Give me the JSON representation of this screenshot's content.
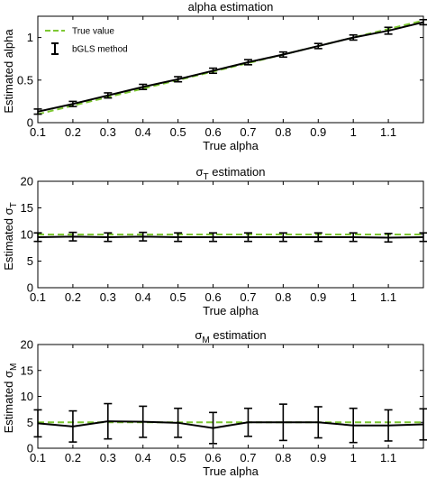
{
  "chart_data": [
    {
      "type": "line",
      "title": "alpha estimation",
      "title_main": "alpha estimation",
      "title_sub": "",
      "xlabel": "True alpha",
      "ylabel": "Estimated alpha",
      "ylabel_main": "Estimated alpha",
      "ylabel_sub": "",
      "xlim": [
        0.1,
        1.2
      ],
      "ylim": [
        0,
        1.25
      ],
      "xticks": [
        0.1,
        0.2,
        0.3,
        0.4,
        0.5,
        0.6,
        0.7,
        0.8,
        0.9,
        1,
        1.1
      ],
      "xtick_labels": [
        "0.1",
        "0.2",
        "0.3",
        "0.4",
        "0.5",
        "0.6",
        "0.7",
        "0.8",
        "0.9",
        "1",
        "1.1"
      ],
      "yticks": [
        0,
        0.5,
        1
      ],
      "ytick_labels": [
        "0",
        "0.5",
        "1"
      ],
      "grid": false,
      "legend": {
        "placement": "top-left",
        "entries": [
          "True value",
          "bGLS method"
        ]
      },
      "x": [
        0.1,
        0.2,
        0.3,
        0.4,
        0.5,
        0.6,
        0.7,
        0.8,
        0.9,
        1.0,
        1.1,
        1.2
      ],
      "series": [
        {
          "name": "True value",
          "style": "dashed",
          "color": "#7dc832",
          "values": [
            0.1,
            0.2,
            0.3,
            0.4,
            0.5,
            0.6,
            0.7,
            0.8,
            0.9,
            1.0,
            1.1,
            1.2
          ]
        },
        {
          "name": "bGLS method",
          "style": "solid",
          "color": "#000000",
          "values": [
            0.13,
            0.22,
            0.32,
            0.42,
            0.51,
            0.61,
            0.71,
            0.8,
            0.9,
            1.0,
            1.08,
            1.18
          ],
          "errors": [
            0.03,
            0.03,
            0.03,
            0.03,
            0.03,
            0.03,
            0.03,
            0.03,
            0.03,
            0.03,
            0.04,
            0.03
          ]
        }
      ]
    },
    {
      "type": "line",
      "title": "σT estimation",
      "title_main": "σ",
      "title_sub": "T",
      "title_suffix": " estimation",
      "xlabel": "True alpha",
      "ylabel": "Estimated σT",
      "ylabel_main": "Estimated σ",
      "ylabel_sub": "T",
      "xlim": [
        0.1,
        1.2
      ],
      "ylim": [
        0,
        20
      ],
      "xticks": [
        0.1,
        0.2,
        0.3,
        0.4,
        0.5,
        0.6,
        0.7,
        0.8,
        0.9,
        1,
        1.1
      ],
      "xtick_labels": [
        "0.1",
        "0.2",
        "0.3",
        "0.4",
        "0.5",
        "0.6",
        "0.7",
        "0.8",
        "0.9",
        "1",
        "1.1"
      ],
      "yticks": [
        0,
        5,
        10,
        15,
        20
      ],
      "ytick_labels": [
        "0",
        "5",
        "10",
        "15",
        "20"
      ],
      "grid": false,
      "x": [
        0.1,
        0.2,
        0.3,
        0.4,
        0.5,
        0.6,
        0.7,
        0.8,
        0.9,
        1.0,
        1.1,
        1.2
      ],
      "series": [
        {
          "name": "True value",
          "style": "dashed",
          "color": "#7dc832",
          "values": [
            10,
            10,
            10,
            10,
            10,
            10,
            10,
            10,
            10,
            10,
            10,
            10
          ]
        },
        {
          "name": "bGLS method",
          "style": "solid",
          "color": "#000000",
          "values": [
            9.5,
            9.6,
            9.5,
            9.6,
            9.5,
            9.5,
            9.5,
            9.5,
            9.5,
            9.5,
            9.4,
            9.5
          ],
          "errors": [
            0.8,
            0.8,
            0.8,
            0.8,
            0.8,
            0.8,
            0.8,
            0.8,
            0.8,
            0.8,
            0.8,
            0.8
          ]
        }
      ]
    },
    {
      "type": "line",
      "title": "σM estimation",
      "title_main": "σ",
      "title_sub": "M",
      "title_suffix": " estimation",
      "xlabel": "True alpha",
      "ylabel": "Estimated σM",
      "ylabel_main": "Estimated σ",
      "ylabel_sub": "M",
      "xlim": [
        0.1,
        1.2
      ],
      "ylim": [
        0,
        20
      ],
      "xticks": [
        0.1,
        0.2,
        0.3,
        0.4,
        0.5,
        0.6,
        0.7,
        0.8,
        0.9,
        1,
        1.1
      ],
      "xtick_labels": [
        "0.1",
        "0.2",
        "0.3",
        "0.4",
        "0.5",
        "0.6",
        "0.7",
        "0.8",
        "0.9",
        "1",
        "1.1"
      ],
      "yticks": [
        0,
        5,
        10,
        15,
        20
      ],
      "ytick_labels": [
        "0",
        "5",
        "10",
        "15",
        "20"
      ],
      "grid": false,
      "x": [
        0.1,
        0.2,
        0.3,
        0.4,
        0.5,
        0.6,
        0.7,
        0.8,
        0.9,
        1.0,
        1.1,
        1.2
      ],
      "series": [
        {
          "name": "True value",
          "style": "dashed",
          "color": "#7dc832",
          "values": [
            5,
            5,
            5,
            5,
            5,
            5,
            5,
            5,
            5,
            5,
            5,
            5
          ]
        },
        {
          "name": "bGLS method",
          "style": "solid",
          "color": "#000000",
          "values": [
            4.8,
            4.2,
            5.2,
            5.1,
            4.9,
            3.9,
            5.0,
            5.0,
            5.0,
            4.4,
            4.4,
            4.6
          ],
          "errors": [
            2.6,
            3.0,
            3.4,
            3.0,
            2.8,
            3.0,
            2.7,
            3.5,
            3.0,
            3.3,
            3.0,
            3.0
          ]
        }
      ]
    }
  ]
}
